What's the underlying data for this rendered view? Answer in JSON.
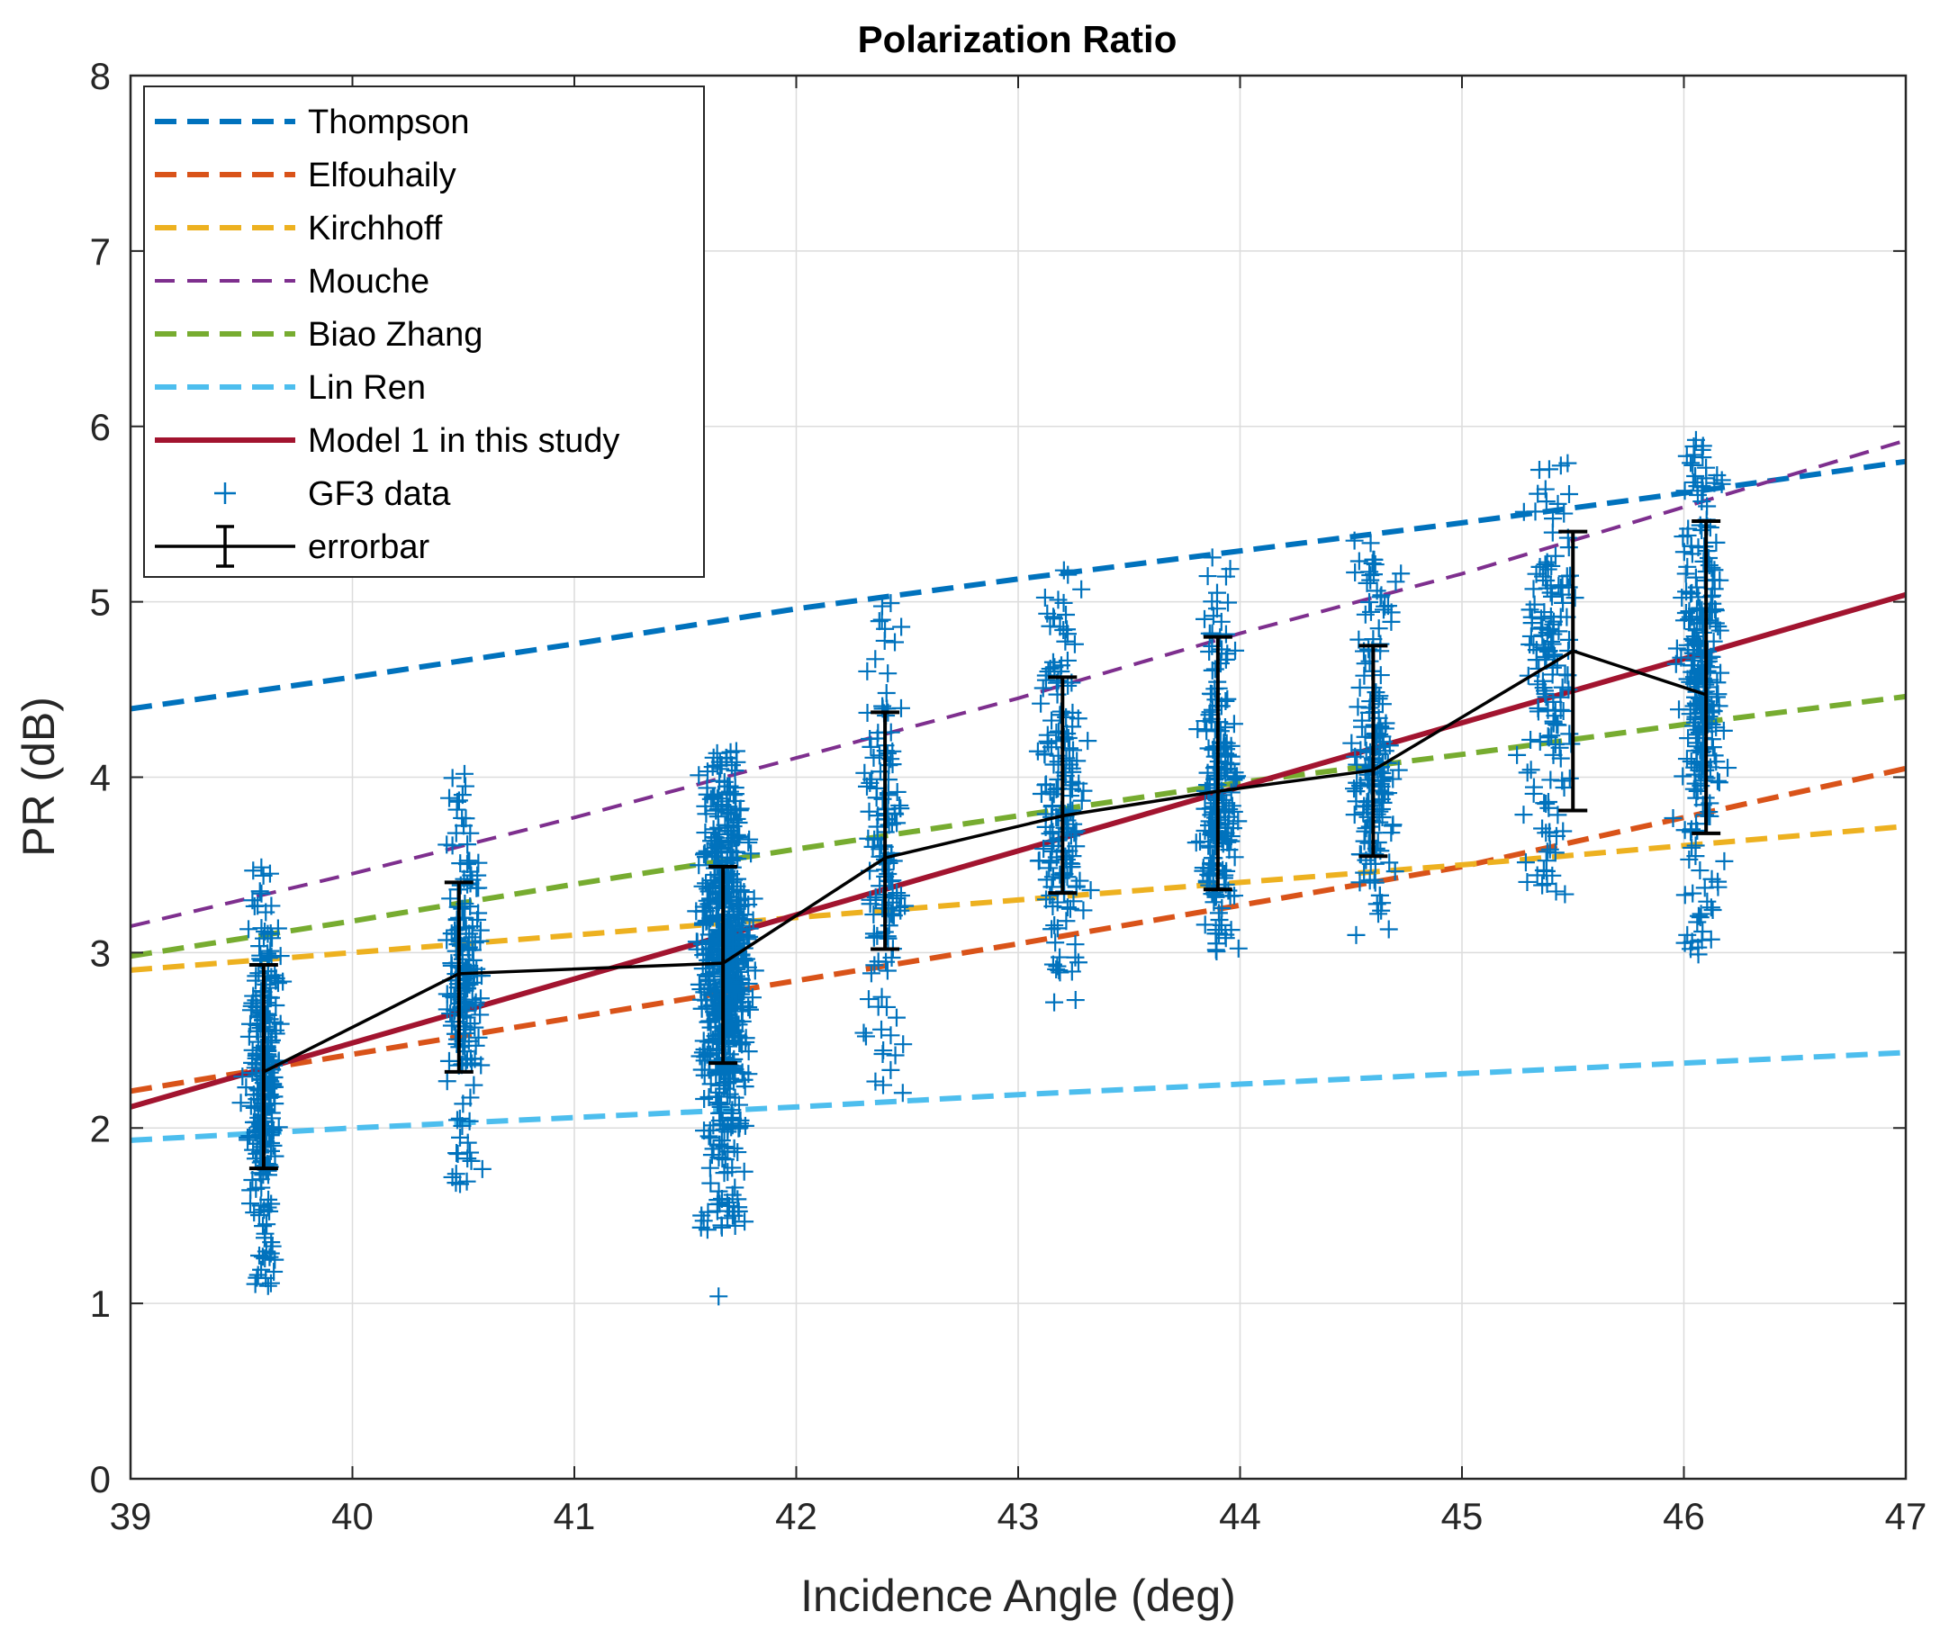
{
  "chart_data": {
    "type": "line",
    "title": "Polarization Ratio",
    "xlabel": "Incidence Angle (deg)",
    "ylabel": "PR (dB)",
    "xlim": [
      39,
      47
    ],
    "ylim": [
      0,
      8
    ],
    "xticks": [
      "39",
      "40",
      "41",
      "42",
      "43",
      "44",
      "45",
      "46",
      "47"
    ],
    "yticks": [
      "0",
      "1",
      "2",
      "3",
      "4",
      "5",
      "6",
      "7",
      "8"
    ],
    "grid": true,
    "legend_position": "top-left",
    "series": [
      {
        "name": "Thompson",
        "style": "dashed",
        "color": "#0072bd",
        "x": [
          39,
          40,
          41,
          42,
          43,
          44,
          45,
          46,
          47
        ],
        "y": [
          4.39,
          4.57,
          4.76,
          4.96,
          5.13,
          5.29,
          5.45,
          5.62,
          5.8
        ]
      },
      {
        "name": "Elfouhaily",
        "style": "dashed",
        "color": "#d95319",
        "x": [
          39,
          40,
          41,
          42,
          43,
          44,
          45,
          46,
          47
        ],
        "y": [
          2.21,
          2.42,
          2.63,
          2.84,
          3.05,
          3.27,
          3.49,
          3.77,
          4.05
        ]
      },
      {
        "name": "Kirchhoff",
        "style": "dashed",
        "color": "#edb120",
        "x": [
          39,
          40,
          41,
          42,
          43,
          44,
          45,
          46,
          47
        ],
        "y": [
          2.9,
          3.0,
          3.1,
          3.2,
          3.3,
          3.4,
          3.5,
          3.61,
          3.72
        ]
      },
      {
        "name": "Mouche",
        "style": "dashed-thin",
        "color": "#7e2f8e",
        "x": [
          39,
          40,
          41,
          42,
          43,
          44,
          45,
          46,
          47
        ],
        "y": [
          3.15,
          3.45,
          3.77,
          4.11,
          4.45,
          4.82,
          5.16,
          5.54,
          5.92
        ]
      },
      {
        "name": "Biao Zhang",
        "style": "dashed",
        "color": "#77ac30",
        "x": [
          39,
          40,
          41,
          42,
          43,
          44,
          45,
          46,
          47
        ],
        "y": [
          2.98,
          3.18,
          3.39,
          3.59,
          3.78,
          3.97,
          4.13,
          4.3,
          4.46
        ]
      },
      {
        "name": "Lin Ren",
        "style": "dashed",
        "color": "#4dbeee",
        "x": [
          39,
          40,
          41,
          42,
          43,
          44,
          45,
          46,
          47
        ],
        "y": [
          1.93,
          2.0,
          2.06,
          2.12,
          2.19,
          2.25,
          2.31,
          2.37,
          2.43
        ]
      },
      {
        "name": "Model 1 in this study",
        "style": "solid",
        "color": "#a2142f",
        "x": [
          39,
          47
        ],
        "y": [
          2.12,
          5.04
        ]
      }
    ],
    "scatter": {
      "name": "GF3 data",
      "marker": "+",
      "color": "#0072bd",
      "clusters": [
        {
          "x": 39.6,
          "x_spread": 0.07,
          "y_min": 1.08,
          "y_max": 3.55,
          "y_center": 2.3,
          "count": 260
        },
        {
          "x": 40.5,
          "x_spread": 0.08,
          "y_min": 1.68,
          "y_max": 4.02,
          "y_center": 2.88,
          "count": 180
        },
        {
          "x": 41.68,
          "x_spread": 0.11,
          "y_min": 1.42,
          "y_max": 4.15,
          "y_center": 2.95,
          "count": 650
        },
        {
          "x": 42.4,
          "x_spread": 0.09,
          "y_min": 2.2,
          "y_max": 5.0,
          "y_center": 3.55,
          "count": 140
        },
        {
          "x": 43.2,
          "x_spread": 0.1,
          "y_min": 2.62,
          "y_max": 5.2,
          "y_center": 3.8,
          "count": 170
        },
        {
          "x": 43.9,
          "x_spread": 0.09,
          "y_min": 2.97,
          "y_max": 5.3,
          "y_center": 3.95,
          "count": 200
        },
        {
          "x": 44.6,
          "x_spread": 0.1,
          "y_min": 3.1,
          "y_max": 5.42,
          "y_center": 4.05,
          "count": 170
        },
        {
          "x": 45.4,
          "x_spread": 0.12,
          "y_min": 3.27,
          "y_max": 5.82,
          "y_center": 4.7,
          "count": 150
        },
        {
          "x": 46.08,
          "x_spread": 0.1,
          "y_min": 2.95,
          "y_max": 5.95,
          "y_center": 4.6,
          "count": 280
        }
      ],
      "outliers": [
        {
          "x": 41.65,
          "y": 1.04
        },
        {
          "x": 41.6,
          "y": 1.42
        },
        {
          "x": 42.48,
          "y": 2.2
        }
      ]
    },
    "errorbar": {
      "name": "errorbar",
      "color": "#000000",
      "x": [
        39.6,
        40.48,
        41.67,
        42.4,
        43.2,
        43.9,
        44.6,
        45.5,
        46.1
      ],
      "y": [
        2.32,
        2.88,
        2.94,
        3.54,
        3.78,
        3.92,
        4.04,
        4.72,
        4.47
      ],
      "lower": [
        1.77,
        2.32,
        2.37,
        3.02,
        3.34,
        3.36,
        3.55,
        3.81,
        3.68
      ],
      "upper": [
        2.93,
        3.4,
        3.49,
        4.37,
        4.57,
        4.8,
        4.75,
        5.4,
        5.46
      ]
    }
  }
}
